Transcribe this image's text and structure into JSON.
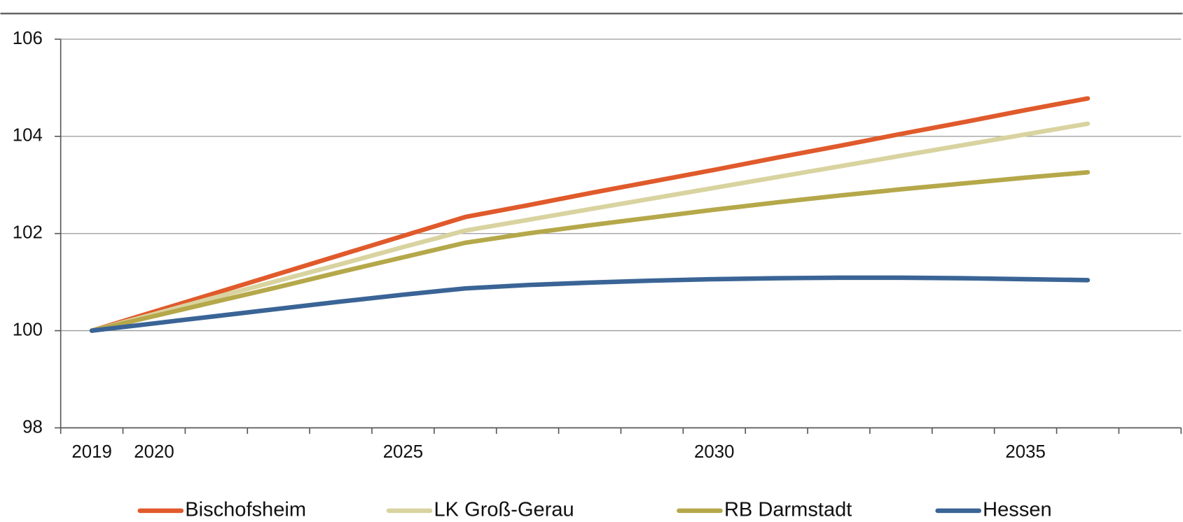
{
  "chart_data": {
    "type": "line",
    "categories": [
      "2019",
      "2020",
      null,
      null,
      null,
      "2025",
      null,
      null,
      null,
      null,
      "2030",
      null,
      null,
      null,
      null,
      "2035",
      null,
      null
    ],
    "series": [
      {
        "name": "Bischofsheim",
        "color": "#e05a2b",
        "values": [
          100,
          100.39,
          100.78,
          101.17,
          101.56,
          101.95,
          102.34,
          102.58,
          102.83,
          103.07,
          103.31,
          103.56,
          103.8,
          104.05,
          104.29,
          104.54,
          104.78,
          null
        ]
      },
      {
        "name": "LK Groß-Gerau",
        "color": "#d9d3a0",
        "values": [
          100,
          100.34,
          100.69,
          101.03,
          101.37,
          101.72,
          102.06,
          102.28,
          102.5,
          102.72,
          102.94,
          103.16,
          103.38,
          103.6,
          103.82,
          104.04,
          104.26,
          null
        ]
      },
      {
        "name": "RB Darmstadt",
        "color": "#b5a84a",
        "values": [
          100,
          100.3,
          100.6,
          100.9,
          101.21,
          101.51,
          101.81,
          102.0,
          102.17,
          102.33,
          102.49,
          102.64,
          102.78,
          102.91,
          103.03,
          103.15,
          103.26,
          null
        ]
      },
      {
        "name": "Hessen",
        "color": "#3a6496",
        "values": [
          100,
          100.15,
          100.3,
          100.45,
          100.6,
          100.74,
          100.87,
          100.94,
          100.99,
          101.03,
          101.06,
          101.08,
          101.09,
          101.09,
          101.08,
          101.06,
          101.04,
          null
        ]
      }
    ],
    "ylim": [
      98,
      106
    ],
    "yticks": [
      98,
      100,
      102,
      104,
      106
    ],
    "grid": true
  }
}
